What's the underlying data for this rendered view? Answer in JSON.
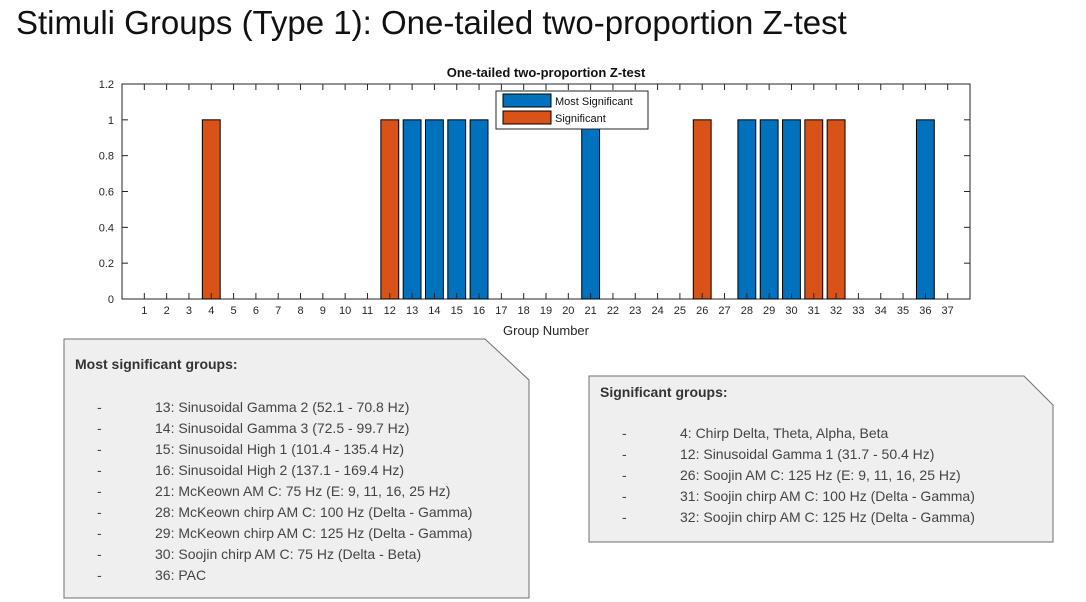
{
  "slide": {
    "title": "Stimuli Groups (Type 1): One-tailed two-proportion Z-test"
  },
  "chart_data": {
    "type": "bar",
    "title": "One-tailed two-proportion Z-test",
    "xlabel": "Group Number",
    "ylabel": "",
    "ylim": [
      0,
      1.2
    ],
    "xlim": [
      0,
      38
    ],
    "yticks": [
      "0",
      "0.2",
      "0.4",
      "0.6",
      "0.8",
      "1",
      "1.2"
    ],
    "categories": [
      "1",
      "2",
      "3",
      "4",
      "5",
      "6",
      "7",
      "8",
      "9",
      "10",
      "11",
      "12",
      "13",
      "14",
      "15",
      "16",
      "17",
      "18",
      "19",
      "20",
      "21",
      "22",
      "23",
      "24",
      "25",
      "26",
      "27",
      "28",
      "29",
      "30",
      "31",
      "32",
      "33",
      "34",
      "35",
      "36",
      "37"
    ],
    "series": [
      {
        "name": "Most Significant",
        "color": "#0072BD",
        "values": [
          0,
          0,
          0,
          0,
          0,
          0,
          0,
          0,
          0,
          0,
          0,
          0,
          1,
          1,
          1,
          1,
          0,
          0,
          0,
          0,
          1,
          0,
          0,
          0,
          0,
          0,
          0,
          1,
          1,
          1,
          0,
          0,
          0,
          0,
          0,
          1,
          0
        ]
      },
      {
        "name": "Significant",
        "color": "#D95319",
        "values": [
          0,
          0,
          0,
          1,
          0,
          0,
          0,
          0,
          0,
          0,
          0,
          1,
          0,
          0,
          0,
          0,
          0,
          0,
          0,
          0,
          0,
          0,
          0,
          0,
          0,
          1,
          0,
          0,
          0,
          0,
          1,
          1,
          0,
          0,
          0,
          0,
          0
        ]
      }
    ],
    "legend_position": "top-center",
    "grid": false
  },
  "callouts": {
    "most": {
      "heading": "Most significant groups:",
      "dash": "-",
      "items": [
        "13: Sinusoidal Gamma 2 (52.1 - 70.8 Hz)",
        "14: Sinusoidal Gamma 3 (72.5 - 99.7 Hz)",
        "15: Sinusoidal High 1 (101.4 - 135.4 Hz)",
        "16: Sinusoidal High 2 (137.1 - 169.4 Hz)",
        "21: McKeown AM C: 75 Hz (E: 9, 11, 16, 25 Hz)",
        "28: McKeown chirp AM C: 100 Hz (Delta - Gamma)",
        "29: McKeown chirp AM C: 125 Hz  (Delta - Gamma)",
        "30: Soojin chirp AM C: 75 Hz (Delta - Beta)",
        "36: PAC"
      ]
    },
    "significant": {
      "heading": "Significant groups:",
      "dash": "-",
      "items": [
        "4: Chirp Delta, Theta, Alpha, Beta",
        "12: Sinusoidal Gamma 1 (31.7 - 50.4 Hz)",
        "26: Soojin AM C: 125 Hz (E: 9, 11, 16, 25 Hz)",
        "31: Soojin chirp AM C: 100 Hz (Delta - Gamma)",
        "32: Soojin chirp AM C: 125 Hz (Delta - Gamma)"
      ]
    }
  }
}
